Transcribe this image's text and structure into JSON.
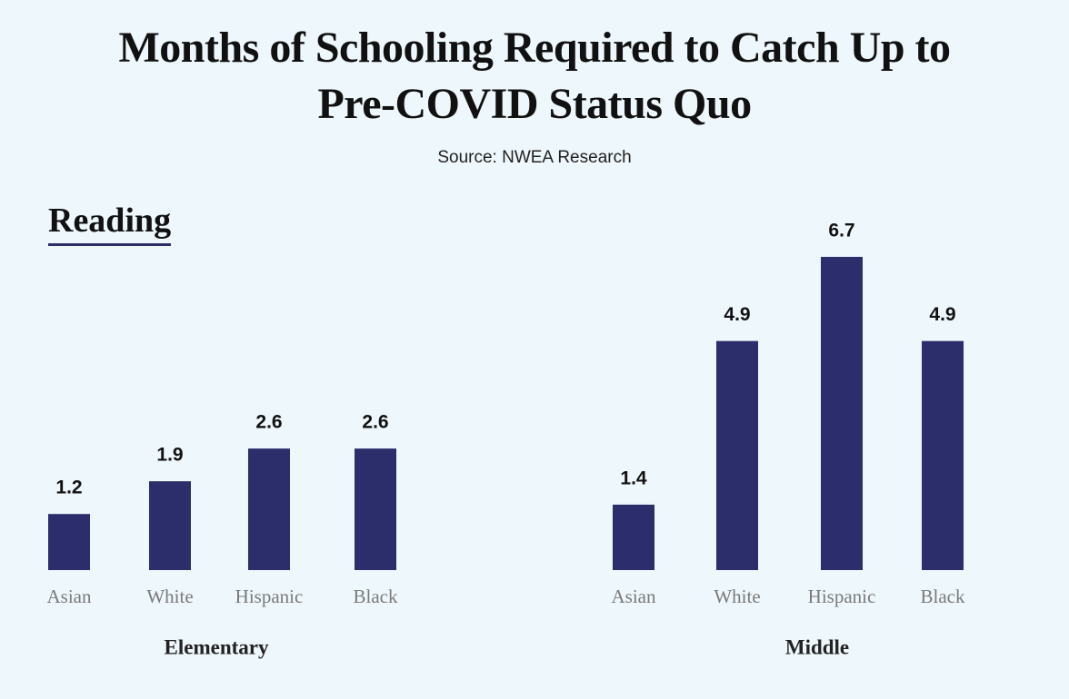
{
  "title": "Months of Schooling Required to Catch Up to Pre-COVID Status Quo",
  "subtitle": "Source: NWEA Research",
  "section": "Reading",
  "chart_data": [
    {
      "type": "bar",
      "xlabel": "Elementary",
      "categories": [
        "Asian",
        "White",
        "Hispanic",
        "Black"
      ],
      "values": [
        1.2,
        1.9,
        2.6,
        2.6
      ],
      "color": "#2b2e6b"
    },
    {
      "type": "bar",
      "xlabel": "Middle",
      "categories": [
        "Asian",
        "White",
        "Hispanic",
        "Black"
      ],
      "values": [
        1.4,
        4.9,
        6.7,
        4.9
      ],
      "color": "#2b2e6b"
    }
  ]
}
